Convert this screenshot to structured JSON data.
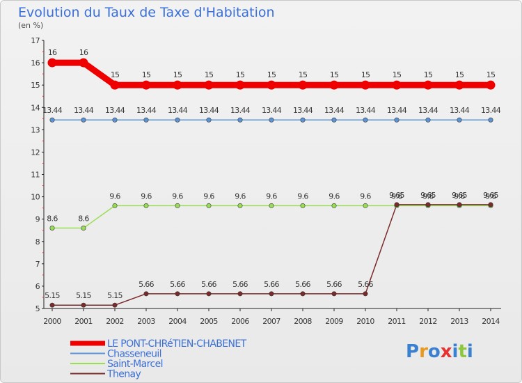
{
  "chart_data": {
    "type": "line",
    "title": "Evolution du Taux de Taxe d'Habitation",
    "subtitle": "(en %)",
    "xlabel": "",
    "ylabel": "",
    "x": [
      "2000",
      "2001",
      "2002",
      "2003",
      "2004",
      "2005",
      "2006",
      "2007",
      "2008",
      "2009",
      "2010",
      "2011",
      "2012",
      "2013",
      "2014"
    ],
    "ylim": [
      5,
      17
    ],
    "yticks": [
      "5",
      "6",
      "7",
      "8",
      "9",
      "10",
      "11",
      "12",
      "13",
      "14",
      "15",
      "16",
      "17"
    ],
    "grid": false,
    "legend_position": "bottom-left",
    "series": [
      {
        "name": "LE PONT-CHRéTIEN-CHABENET",
        "color": "#ee0000",
        "values": [
          16,
          16,
          15,
          15,
          15,
          15,
          15,
          15,
          15,
          15,
          15,
          15,
          15,
          15,
          15
        ],
        "labels": [
          "16",
          "16",
          "15",
          "15",
          "15",
          "15",
          "15",
          "15",
          "15",
          "15",
          "15",
          "15",
          "15",
          "15",
          "15"
        ]
      },
      {
        "name": "Chasseneuil",
        "color": "#5b95d8",
        "values": [
          13.44,
          13.44,
          13.44,
          13.44,
          13.44,
          13.44,
          13.44,
          13.44,
          13.44,
          13.44,
          13.44,
          13.44,
          13.44,
          13.44,
          13.44
        ],
        "labels": [
          "13.44",
          "13.44",
          "13.44",
          "13.44",
          "13.44",
          "13.44",
          "13.44",
          "13.44",
          "13.44",
          "13.44",
          "13.44",
          "13.44",
          "13.44",
          "13.44",
          "13.44"
        ]
      },
      {
        "name": "Saint-Marcel",
        "color": "#99dd55",
        "values": [
          8.6,
          8.6,
          9.6,
          9.6,
          9.6,
          9.6,
          9.6,
          9.6,
          9.6,
          9.6,
          9.6,
          9.6,
          9.6,
          9.6,
          9.6
        ],
        "labels": [
          "8.6",
          "8.6",
          "9.6",
          "9.6",
          "9.6",
          "9.6",
          "9.6",
          "9.6",
          "9.6",
          "9.6",
          "9.6",
          "9.6",
          "9.6",
          "9.6",
          "9.6"
        ]
      },
      {
        "name": "Thenay",
        "color": "#7a2a2a",
        "values": [
          5.15,
          5.15,
          5.15,
          5.66,
          5.66,
          5.66,
          5.66,
          5.66,
          5.66,
          5.66,
          5.66,
          9.65,
          9.65,
          9.65,
          9.65
        ],
        "labels": [
          "5.15",
          "5.15",
          "5.15",
          "5.66",
          "5.66",
          "5.66",
          "5.66",
          "5.66",
          "5.66",
          "5.66",
          "5.66",
          "9.65",
          "9.65",
          "9.65",
          "9.65"
        ]
      }
    ]
  },
  "branding": {
    "logo_letters": [
      {
        "ch": "P",
        "color": "#3a80d0"
      },
      {
        "ch": "r",
        "color": "#e89a20"
      },
      {
        "ch": "o",
        "color": "#3a80d0"
      },
      {
        "ch": "x",
        "color": "#e83030"
      },
      {
        "ch": "i",
        "color": "#3a80d0"
      },
      {
        "ch": "t",
        "color": "#8cc83c"
      },
      {
        "ch": "i",
        "color": "#3a80d0"
      }
    ]
  }
}
